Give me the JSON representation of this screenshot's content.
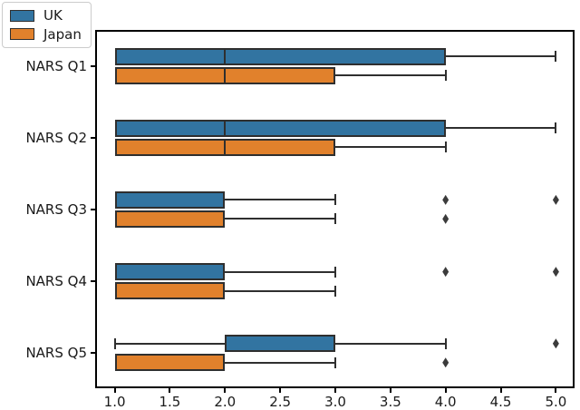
{
  "figure": {
    "background": "#ffffff"
  },
  "legend": {
    "items": [
      {
        "label": "UK",
        "color": "#3274a1"
      },
      {
        "label": "Japan",
        "color": "#e1812c"
      }
    ]
  },
  "style": {
    "box_edge": "#2f2f2f",
    "whisker": "#2f2f2f",
    "outlier": "#3b3b3b",
    "spine": "#000000"
  },
  "chart_data": {
    "type": "boxplot",
    "orientation": "horizontal",
    "title": "",
    "xlabel": "",
    "ylabel": "",
    "grid": false,
    "legend_position": "upper-left-outside",
    "xlim": [
      0.8,
      5.2
    ],
    "x_ticks": [
      "1.0",
      "1.5",
      "2.0",
      "2.5",
      "3.0",
      "3.5",
      "4.0",
      "4.5",
      "5.0"
    ],
    "categories": [
      "NARS Q1",
      "NARS Q2",
      "NARS Q3",
      "NARS Q4",
      "NARS Q5"
    ],
    "series": [
      {
        "name": "UK",
        "color": "#3274a1",
        "boxes": [
          {
            "category": "NARS Q1",
            "whisker_low": 1.0,
            "q1": 1.0,
            "median": 2.0,
            "q3": 4.0,
            "whisker_high": 5.0,
            "outliers": []
          },
          {
            "category": "NARS Q2",
            "whisker_low": 1.0,
            "q1": 1.0,
            "median": 2.0,
            "q3": 4.0,
            "whisker_high": 5.0,
            "outliers": []
          },
          {
            "category": "NARS Q3",
            "whisker_low": 1.0,
            "q1": 1.0,
            "median": null,
            "q3": 2.0,
            "whisker_high": 3.0,
            "outliers": [
              4.0,
              5.0
            ]
          },
          {
            "category": "NARS Q4",
            "whisker_low": 1.0,
            "q1": 1.0,
            "median": null,
            "q3": 2.0,
            "whisker_high": 3.0,
            "outliers": [
              4.0,
              5.0
            ]
          },
          {
            "category": "NARS Q5",
            "whisker_low": 1.0,
            "q1": 2.0,
            "median": null,
            "q3": 3.0,
            "whisker_high": 4.0,
            "outliers": [
              5.0
            ]
          }
        ]
      },
      {
        "name": "Japan",
        "color": "#e1812c",
        "boxes": [
          {
            "category": "NARS Q1",
            "whisker_low": 1.0,
            "q1": 1.0,
            "median": 2.0,
            "q3": 3.0,
            "whisker_high": 4.0,
            "outliers": []
          },
          {
            "category": "NARS Q2",
            "whisker_low": 1.0,
            "q1": 1.0,
            "median": 2.0,
            "q3": 3.0,
            "whisker_high": 4.0,
            "outliers": []
          },
          {
            "category": "NARS Q3",
            "whisker_low": 1.0,
            "q1": 1.0,
            "median": null,
            "q3": 2.0,
            "whisker_high": 3.0,
            "outliers": [
              4.0
            ]
          },
          {
            "category": "NARS Q4",
            "whisker_low": 1.0,
            "q1": 1.0,
            "median": null,
            "q3": 2.0,
            "whisker_high": 3.0,
            "outliers": []
          },
          {
            "category": "NARS Q5",
            "whisker_low": 1.0,
            "q1": 1.0,
            "median": null,
            "q3": 2.0,
            "whisker_high": 3.0,
            "outliers": [
              4.0
            ]
          }
        ]
      }
    ]
  }
}
